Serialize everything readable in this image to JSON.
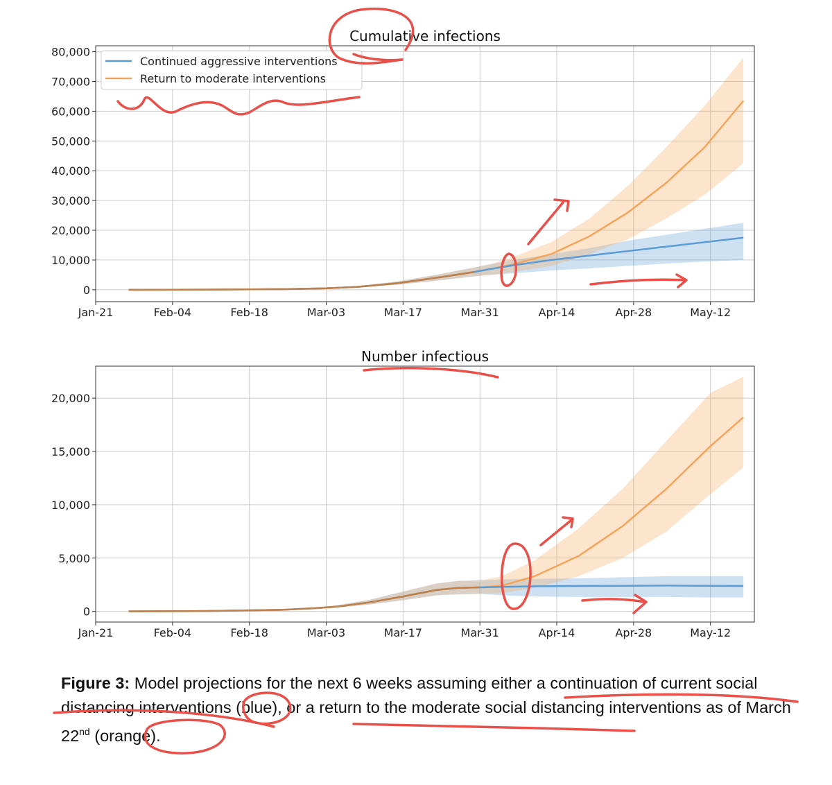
{
  "chart_data": [
    {
      "type": "line",
      "title": "Cumulative infections",
      "xlabel": "",
      "ylabel": "",
      "x_ticks": [
        "Jan-21",
        "Feb-04",
        "Feb-18",
        "Mar-03",
        "Mar-17",
        "Mar-31",
        "Apr-14",
        "Apr-28",
        "May-12"
      ],
      "y_ticks": [
        "0",
        "10,000",
        "20,000",
        "30,000",
        "40,000",
        "50,000",
        "60,000",
        "70,000",
        "80,000"
      ],
      "ylim": [
        -4000,
        82000
      ],
      "xlim_days": [
        0,
        120
      ],
      "grid": true,
      "legend_position": "top-left",
      "series": [
        {
          "name": "Continued aggressive interventions",
          "color": "#5b9bd5",
          "x_days": [
            6,
            20,
            34,
            42,
            48,
            55,
            62,
            69,
            72,
            76,
            83,
            90,
            97,
            104,
            111,
            118
          ],
          "values": [
            0,
            50,
            200,
            500,
            1000,
            2200,
            4000,
            6000,
            7000,
            8200,
            10000,
            11500,
            13000,
            14500,
            16000,
            17500
          ],
          "lower": [
            0,
            30,
            150,
            400,
            800,
            1700,
            3000,
            4500,
            5000,
            5500,
            6500,
            7200,
            8000,
            8800,
            9500,
            10000
          ],
          "upper": [
            0,
            70,
            260,
            650,
            1300,
            2800,
            5000,
            7500,
            8600,
            10000,
            12000,
            14000,
            16500,
            18500,
            20500,
            22500
          ]
        },
        {
          "name": "Return to moderate interventions",
          "color": "#f5a55a",
          "x_days": [
            6,
            20,
            34,
            42,
            48,
            55,
            62,
            69,
            72,
            76,
            83,
            90,
            97,
            104,
            111,
            118
          ],
          "values": [
            0,
            50,
            200,
            500,
            1000,
            2200,
            4000,
            6000,
            7000,
            8500,
            12000,
            18000,
            26000,
            36000,
            48000,
            63500
          ],
          "lower": [
            0,
            30,
            150,
            400,
            800,
            1700,
            3000,
            4500,
            5000,
            6000,
            8000,
            12000,
            17000,
            24000,
            32000,
            42500
          ],
          "upper": [
            0,
            70,
            260,
            650,
            1300,
            2800,
            5000,
            7500,
            8600,
            11000,
            16000,
            24000,
            35000,
            48000,
            62000,
            78000
          ]
        }
      ]
    },
    {
      "type": "line",
      "title": "Number infectious",
      "xlabel": "",
      "ylabel": "",
      "x_ticks": [
        "Jan-21",
        "Feb-04",
        "Feb-18",
        "Mar-03",
        "Mar-17",
        "Mar-31",
        "Apr-14",
        "Apr-28",
        "May-12"
      ],
      "y_ticks": [
        "0",
        "5,000",
        "10,000",
        "15,000",
        "20,000"
      ],
      "ylim": [
        -1000,
        23000
      ],
      "xlim_days": [
        0,
        120
      ],
      "grid": true,
      "series": [
        {
          "name": "Continued aggressive interventions",
          "color": "#5b9bd5",
          "x_days": [
            6,
            20,
            34,
            40,
            44,
            50,
            56,
            62,
            66,
            70,
            74,
            80,
            88,
            96,
            104,
            112,
            118
          ],
          "values": [
            0,
            30,
            150,
            300,
            450,
            850,
            1400,
            2000,
            2200,
            2250,
            2300,
            2350,
            2380,
            2400,
            2420,
            2400,
            2380
          ],
          "lower": [
            0,
            20,
            110,
            240,
            350,
            650,
            1050,
            1500,
            1600,
            1650,
            1500,
            1400,
            1350,
            1350,
            1350,
            1300,
            1300
          ],
          "upper": [
            0,
            40,
            200,
            380,
            560,
            1100,
            1850,
            2600,
            2850,
            2900,
            3000,
            3050,
            3100,
            3200,
            3300,
            3300,
            3300
          ]
        },
        {
          "name": "Return to moderate interventions",
          "color": "#f5a55a",
          "x_days": [
            6,
            20,
            34,
            40,
            44,
            50,
            56,
            62,
            66,
            70,
            74,
            80,
            88,
            96,
            104,
            112,
            118
          ],
          "values": [
            0,
            30,
            150,
            300,
            450,
            850,
            1400,
            2000,
            2200,
            2250,
            2400,
            3300,
            5200,
            8000,
            11500,
            15500,
            18200
          ],
          "lower": [
            0,
            20,
            110,
            240,
            350,
            650,
            1050,
            1500,
            1600,
            1650,
            1700,
            2200,
            3300,
            5000,
            7500,
            11000,
            13500
          ],
          "upper": [
            0,
            40,
            200,
            380,
            560,
            1100,
            1850,
            2600,
            2850,
            2900,
            3300,
            4800,
            7800,
            11500,
            16000,
            20500,
            22000
          ]
        }
      ]
    }
  ],
  "caption": {
    "label": "Figure 3:",
    "text_1": " Model projections for the next 6 weeks assuming either a continuation of current social distancing interventions (blue), or a return to the moderate social distancing interventions as of March 22",
    "sup": "nd",
    "text_2": " (orange)."
  },
  "colors": {
    "annotation": "#e8504a",
    "grid": "#cccccc",
    "axis": "#333333"
  }
}
